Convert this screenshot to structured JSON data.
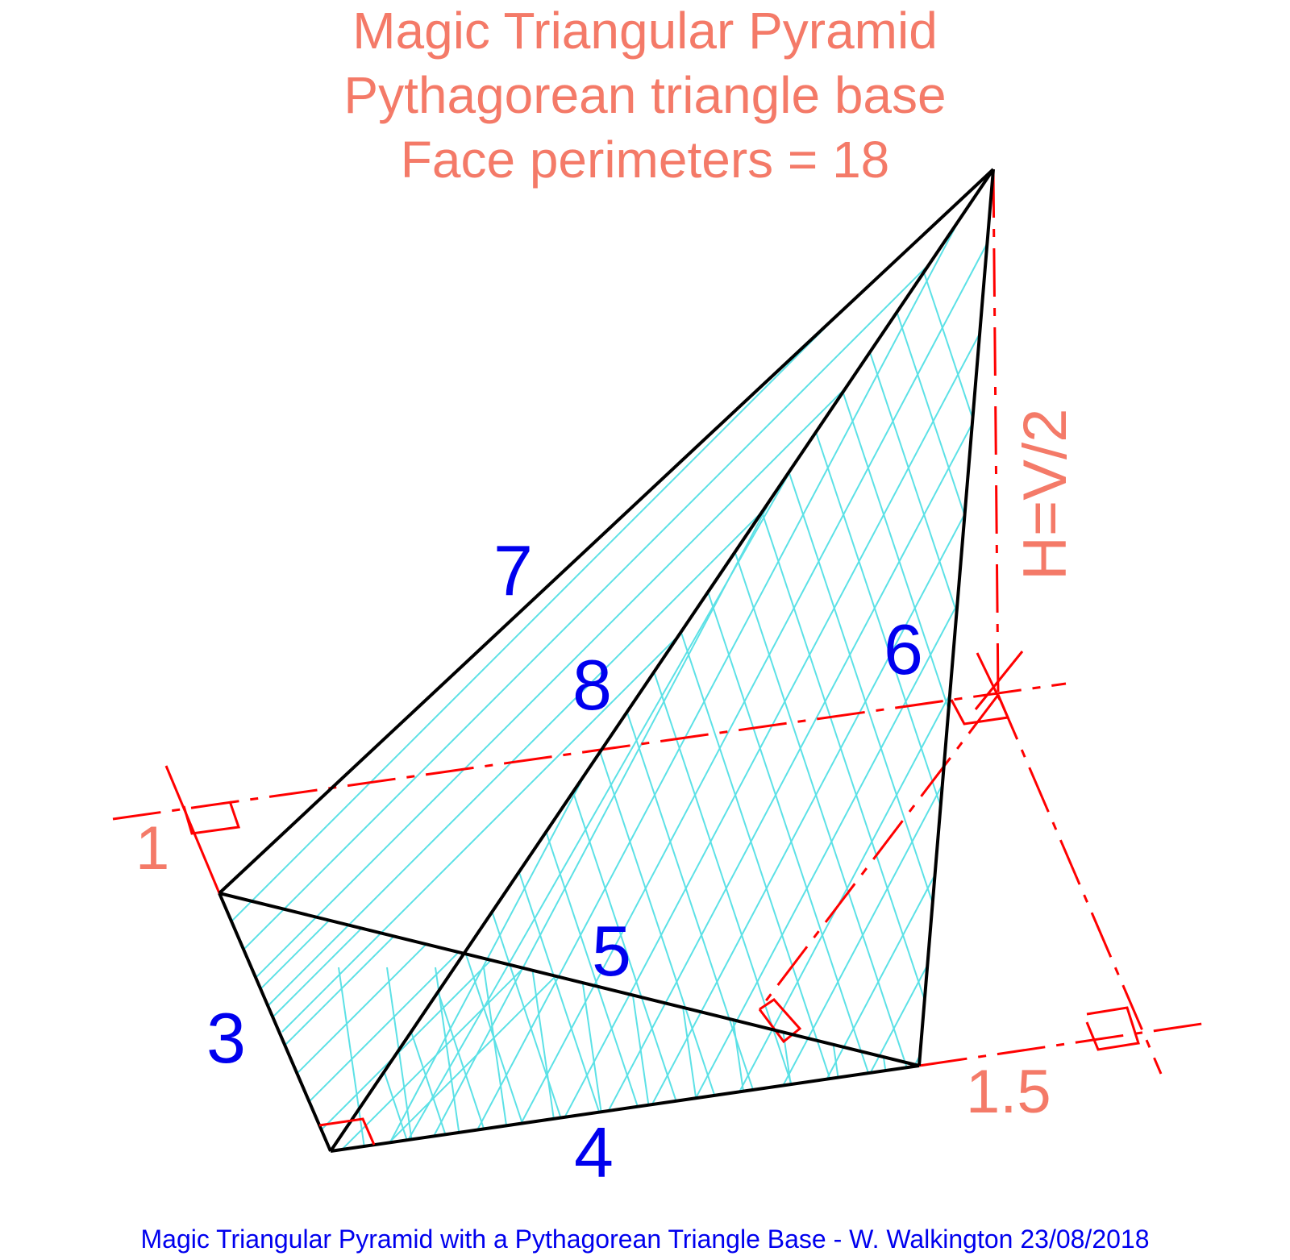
{
  "title": {
    "line1": "Magic Triangular Pyramid",
    "line2": "Pythagorean triangle base",
    "line3": "Face perimeters = 18"
  },
  "edge_labels": {
    "e3": "3",
    "e4": "4",
    "e5": "5",
    "e6": "6",
    "e7": "7",
    "e8": "8"
  },
  "dimension_labels": {
    "d1": "1",
    "d15": "1.5",
    "height": "H=V/2"
  },
  "footer": "Magic Triangular Pyramid with a Pythagorean Triangle Base - W. Walkington 23/08/2018",
  "colors": {
    "title": "#f47a68",
    "edge_label": "#0000ee",
    "dimension": "#ff0000",
    "dimension_text": "#f47a68",
    "hatch": "#5ce1e6",
    "edge": "#000000"
  }
}
